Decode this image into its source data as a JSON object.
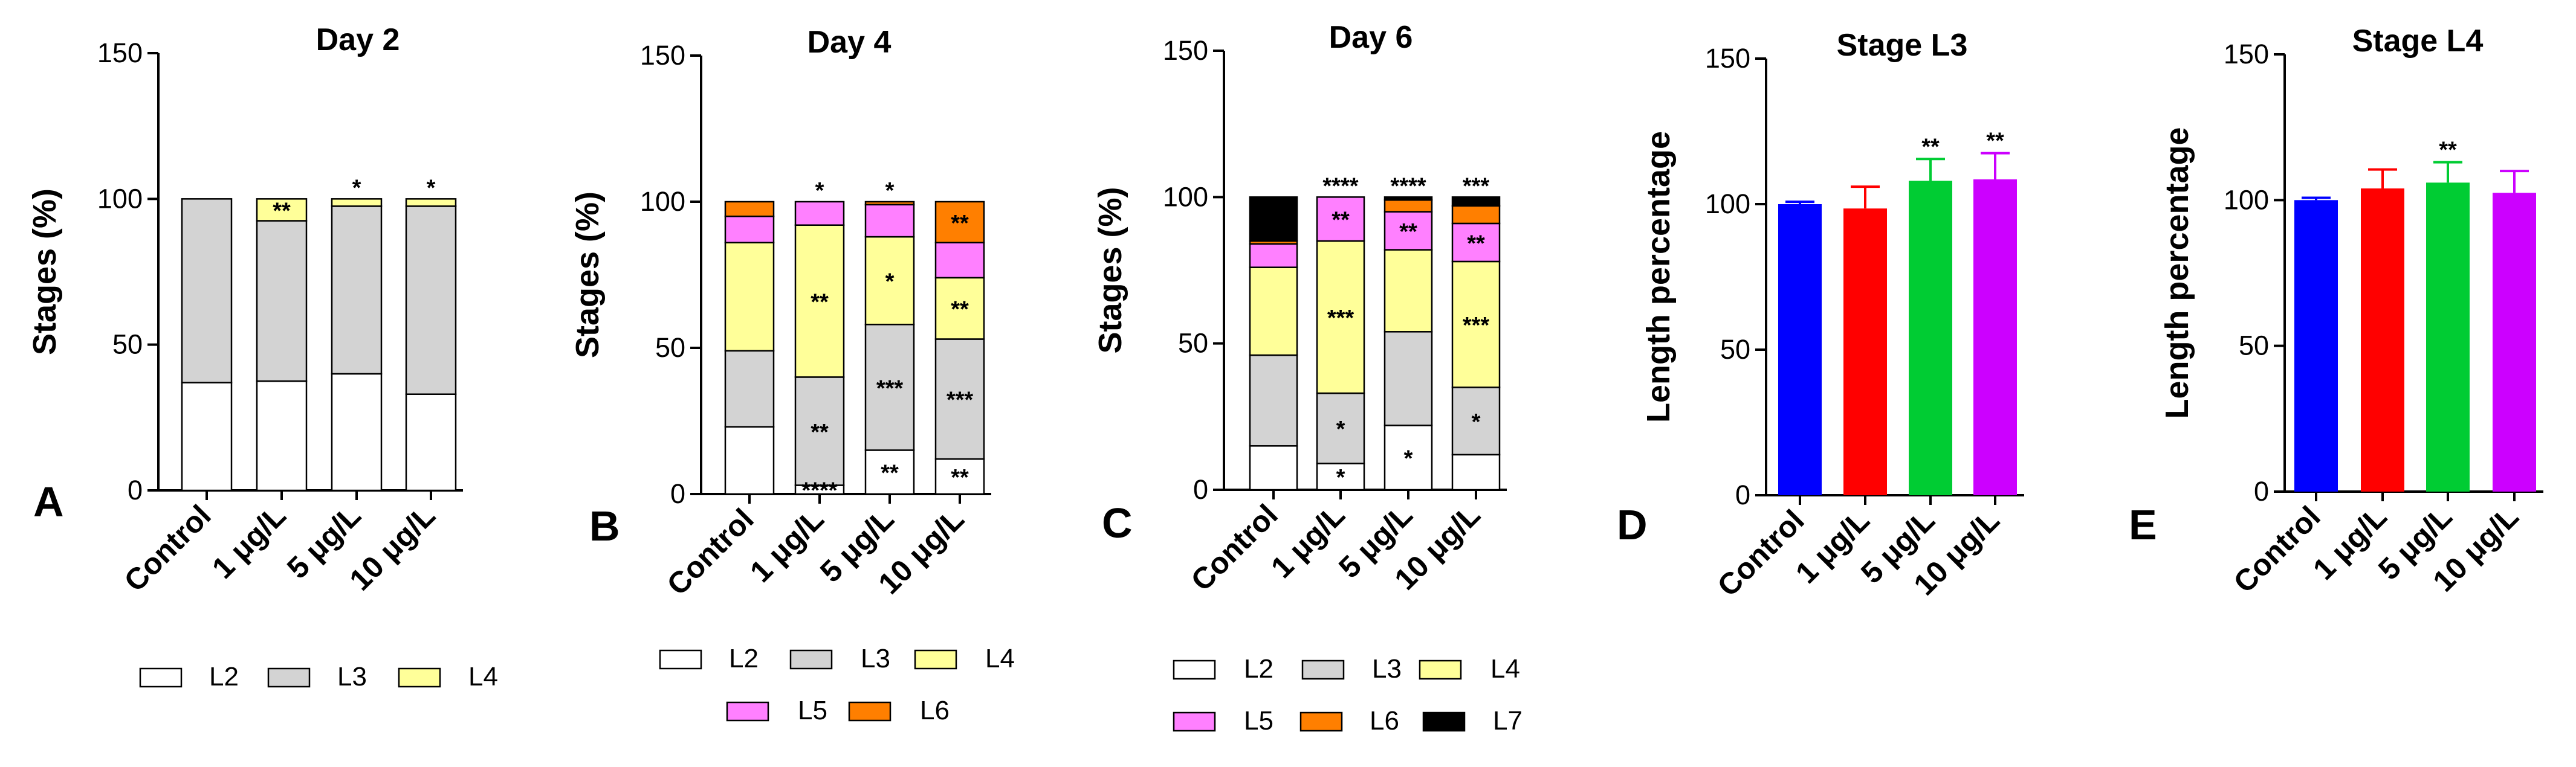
{
  "chart_data": [
    {
      "panel": "A",
      "type": "stacked_bar",
      "title": "Day 2",
      "ylabel": "Stages (%)",
      "ylim": [
        0,
        150
      ],
      "yticks": [
        0,
        50,
        100,
        150
      ],
      "categories": [
        "Control",
        "1 μg/L",
        "5 μg/L",
        "10 μg/L"
      ],
      "series": [
        {
          "name": "L2",
          "color": "#ffffff",
          "values": [
            37,
            37.5,
            40,
            33
          ]
        },
        {
          "name": "L3",
          "color": "#d3d3d3",
          "values": [
            63,
            55,
            57.5,
            64.5
          ]
        },
        {
          "name": "L4",
          "color": "#ffff99",
          "values": [
            0,
            7.5,
            2.5,
            2.5
          ]
        }
      ],
      "annotations": [
        {
          "category": "1 μg/L",
          "series": "L4",
          "text": "**"
        },
        {
          "category": "5 μg/L",
          "position": "top",
          "text": "*"
        },
        {
          "category": "10 μg/L",
          "position": "top",
          "text": "*"
        }
      ]
    },
    {
      "panel": "B",
      "type": "stacked_bar",
      "title": "Day 4",
      "ylabel": "Stages (%)",
      "ylim": [
        0,
        150
      ],
      "yticks": [
        0,
        50,
        100,
        150
      ],
      "categories": [
        "Control",
        "1 μg/L",
        "5 μg/L",
        "10 μg/L"
      ],
      "series": [
        {
          "name": "L2",
          "color": "#ffffff",
          "values": [
            23,
            3,
            15,
            12
          ]
        },
        {
          "name": "L3",
          "color": "#d3d3d3",
          "values": [
            26,
            37,
            43,
            41
          ]
        },
        {
          "name": "L4",
          "color": "#ffff99",
          "values": [
            37,
            52,
            30,
            21
          ]
        },
        {
          "name": "L5",
          "color": "#ff80ff",
          "values": [
            9,
            8,
            11,
            12
          ]
        },
        {
          "name": "L6",
          "color": "#ff7f00",
          "values": [
            5,
            0,
            1,
            14
          ]
        }
      ],
      "annotations": [
        {
          "category": "1 μg/L",
          "series": "L2",
          "text": "****"
        },
        {
          "category": "1 μg/L",
          "series": "L3",
          "text": "**"
        },
        {
          "category": "1 μg/L",
          "series": "L4",
          "text": "**"
        },
        {
          "category": "1 μg/L",
          "position": "top",
          "text": "*"
        },
        {
          "category": "5 μg/L",
          "series": "L2",
          "text": "**"
        },
        {
          "category": "5 μg/L",
          "series": "L3",
          "text": "***"
        },
        {
          "category": "5 μg/L",
          "series": "L4",
          "text": "*"
        },
        {
          "category": "5 μg/L",
          "position": "top",
          "text": "*"
        },
        {
          "category": "10 μg/L",
          "series": "L2",
          "text": "**"
        },
        {
          "category": "10 μg/L",
          "series": "L3",
          "text": "***"
        },
        {
          "category": "10 μg/L",
          "series": "L4",
          "text": "**"
        },
        {
          "category": "10 μg/L",
          "series": "L6",
          "text": "**"
        }
      ]
    },
    {
      "panel": "C",
      "type": "stacked_bar",
      "title": "Day 6",
      "ylabel": "Stages (%)",
      "ylim": [
        0,
        150
      ],
      "yticks": [
        0,
        50,
        100,
        150
      ],
      "categories": [
        "Control",
        "1 μg/L",
        "5 μg/L",
        "10 μg/L"
      ],
      "series": [
        {
          "name": "L2",
          "color": "#ffffff",
          "values": [
            15,
            9,
            22,
            12
          ]
        },
        {
          "name": "L3",
          "color": "#d3d3d3",
          "values": [
            31,
            24,
            32,
            23
          ]
        },
        {
          "name": "L4",
          "color": "#ffff99",
          "values": [
            30,
            52,
            28,
            43
          ]
        },
        {
          "name": "L5",
          "color": "#ff80ff",
          "values": [
            8,
            15,
            13,
            13
          ]
        },
        {
          "name": "L6",
          "color": "#ff7f00",
          "values": [
            1,
            0,
            4,
            6
          ]
        },
        {
          "name": "L7",
          "color": "#000000",
          "values": [
            15,
            0,
            1,
            3
          ]
        }
      ],
      "annotations": [
        {
          "category": "1 μg/L",
          "series": "L2",
          "text": "*"
        },
        {
          "category": "1 μg/L",
          "series": "L3",
          "text": "*"
        },
        {
          "category": "1 μg/L",
          "series": "L4",
          "text": "***"
        },
        {
          "category": "1 μg/L",
          "series": "L5",
          "text": "**"
        },
        {
          "category": "1 μg/L",
          "position": "top",
          "text": "****"
        },
        {
          "category": "5 μg/L",
          "series": "L2",
          "text": "*"
        },
        {
          "category": "5 μg/L",
          "series": "L5",
          "text": "**"
        },
        {
          "category": "5 μg/L",
          "position": "top",
          "text": "****"
        },
        {
          "category": "10 μg/L",
          "series": "L3",
          "text": "*"
        },
        {
          "category": "10 μg/L",
          "series": "L4",
          "text": "***"
        },
        {
          "category": "10 μg/L",
          "series": "L5",
          "text": "**"
        },
        {
          "category": "10 μg/L",
          "position": "top",
          "text": "***"
        }
      ]
    },
    {
      "panel": "D",
      "type": "bar",
      "title": "Stage L3",
      "ylabel": "Length percentage",
      "ylim": [
        0,
        150
      ],
      "yticks": [
        0,
        50,
        100,
        150
      ],
      "categories": [
        "Control",
        "1 μg/L",
        "5 μg/L",
        "10 μg/L"
      ],
      "values": [
        100,
        98.5,
        108,
        108.5
      ],
      "errors": [
        0.8,
        7.5,
        7.5,
        9
      ],
      "colors": [
        "#0000ff",
        "#ff0000",
        "#00cc33",
        "#cc00ff"
      ],
      "annotations": [
        {
          "category": "5 μg/L",
          "text": "**"
        },
        {
          "category": "10 μg/L",
          "text": "**"
        }
      ]
    },
    {
      "panel": "E",
      "type": "bar",
      "title": "Stage L4",
      "ylabel": "Length percentage",
      "ylim": [
        0,
        150
      ],
      "yticks": [
        0,
        50,
        100,
        150
      ],
      "categories": [
        "Control",
        "1 μg/L",
        "5 μg/L",
        "10 μg/L"
      ],
      "values": [
        100,
        104,
        106,
        102.5
      ],
      "errors": [
        0.8,
        6.5,
        7,
        7.5
      ],
      "colors": [
        "#0000ff",
        "#ff0000",
        "#00cc33",
        "#cc00ff"
      ],
      "annotations": [
        {
          "category": "5 μg/L",
          "text": "**"
        }
      ]
    }
  ]
}
